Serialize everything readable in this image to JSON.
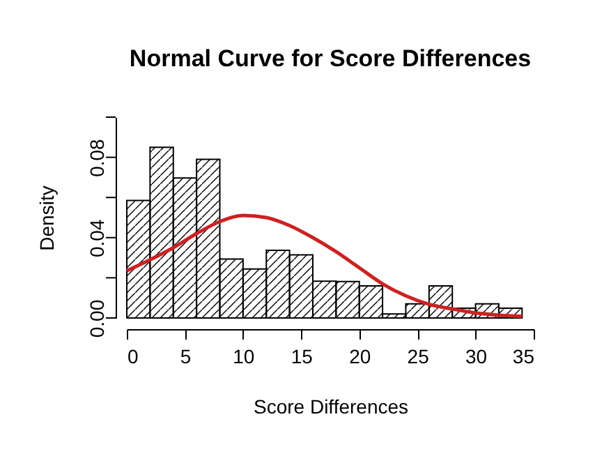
{
  "chart_data": {
    "type": "histogram",
    "title": "Normal Curve for Score Differences",
    "xlabel": "Score Differences",
    "ylabel": "Density",
    "bins": [
      0,
      2,
      4,
      6,
      8,
      10,
      12,
      14,
      16,
      18,
      20,
      22,
      24,
      26,
      28,
      30,
      32,
      34
    ],
    "values": [
      0.0585,
      0.085,
      0.0697,
      0.079,
      0.0293,
      0.0244,
      0.0337,
      0.0314,
      0.0183,
      0.0181,
      0.016,
      0.002,
      0.007,
      0.016,
      0.0049,
      0.007,
      0.0049
    ],
    "series": [
      {
        "type": "line",
        "color": "#cc2222",
        "x": [
          0,
          2,
          4,
          6,
          8,
          10,
          12,
          14,
          16,
          18,
          20,
          22,
          24,
          26,
          28,
          30,
          32,
          34
        ],
        "values": [
          0.0235,
          0.029,
          0.035,
          0.042,
          0.048,
          0.051,
          0.05,
          0.046,
          0.04,
          0.033,
          0.025,
          0.017,
          0.011,
          0.0068,
          0.0045,
          0.0025,
          0.0014,
          0.0008
        ]
      }
    ],
    "xlim": [
      0,
      35
    ],
    "ylim": [
      0,
      0.1
    ],
    "xticks": [
      0,
      5,
      10,
      15,
      20,
      25,
      30,
      35
    ],
    "yticks": [
      {
        "value": 0,
        "label": "0.00"
      },
      {
        "value": 0.02,
        "label": null
      },
      {
        "value": 0.04,
        "label": "0.04"
      },
      {
        "value": 0.06,
        "label": null
      },
      {
        "value": 0.08,
        "label": "0.08"
      },
      {
        "value": 0.1,
        "label": null
      }
    ],
    "grid": false
  }
}
